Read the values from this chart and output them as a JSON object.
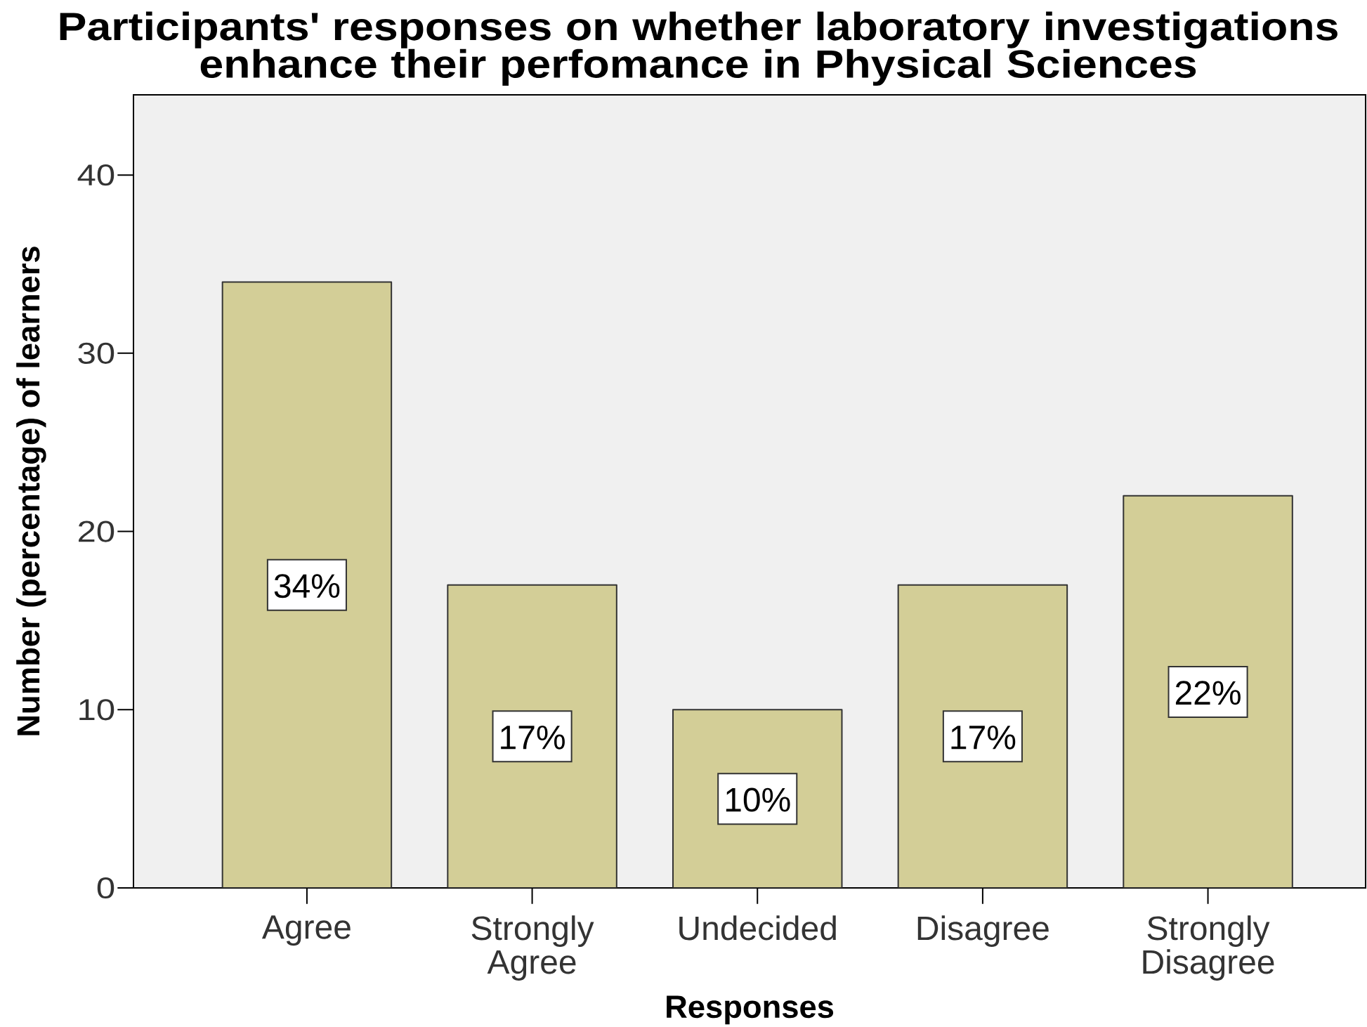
{
  "chart_data": {
    "type": "bar",
    "title": "Participants' responses on whether laboratory investigations enhance their perfomance in Physical Sciences",
    "xlabel": "Responses",
    "ylabel": "Number (percentage) of learners",
    "categories": [
      "Agree",
      "Strongly Agree",
      "Undecided",
      "Disagree",
      "Strongly Disagree"
    ],
    "values": [
      34,
      17,
      10,
      17,
      22
    ],
    "color": "#d3ce97",
    "value_labels": [
      "34%",
      "17%",
      "10%",
      "17%",
      "22%"
    ],
    "ylim": [
      0,
      44.5
    ],
    "yticks": [
      0,
      10,
      20,
      30,
      40
    ]
  }
}
